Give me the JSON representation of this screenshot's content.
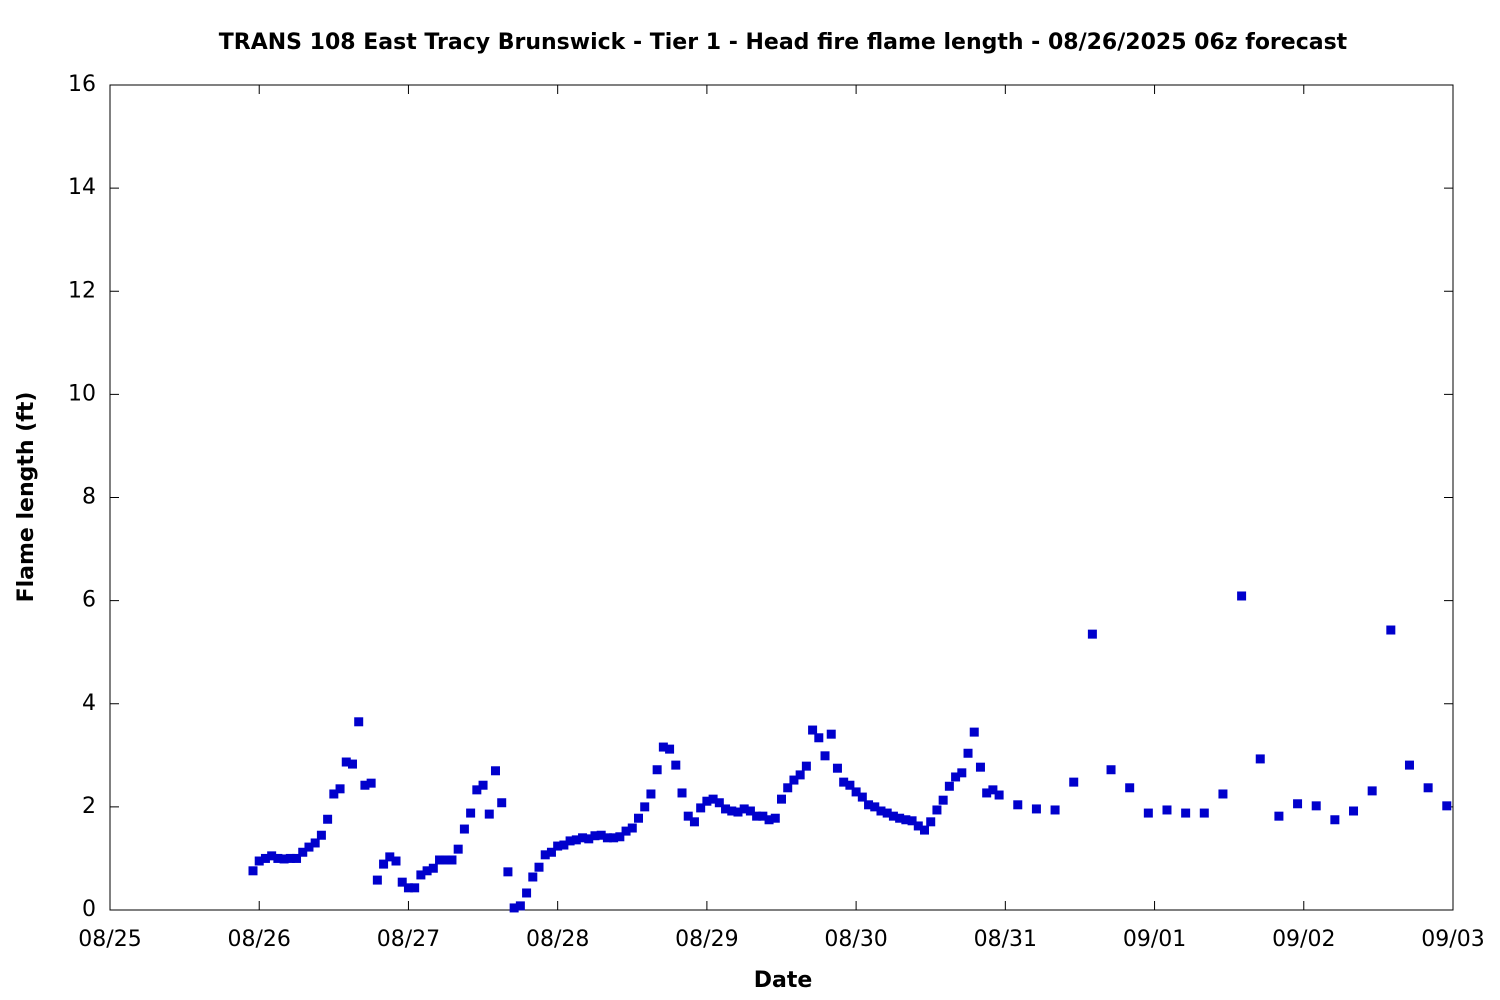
{
  "chart_data": {
    "type": "scatter",
    "title": "TRANS 108 East Tracy Brunswick - Tier 1 - Head fire flame length - 08/26/2025 06z forecast",
    "x_label": "Date",
    "y_label": "Flame length (ft)",
    "xlim": [
      0,
      216
    ],
    "xticks": [
      {
        "value": 0,
        "label": "08/25"
      },
      {
        "value": 24,
        "label": "08/26"
      },
      {
        "value": 48,
        "label": "08/27"
      },
      {
        "value": 72,
        "label": "08/28"
      },
      {
        "value": 96,
        "label": "08/29"
      },
      {
        "value": 120,
        "label": "08/30"
      },
      {
        "value": 144,
        "label": "08/31"
      },
      {
        "value": 168,
        "label": "09/01"
      },
      {
        "value": 192,
        "label": "09/02"
      },
      {
        "value": 216,
        "label": "09/03"
      }
    ],
    "ylim": [
      0,
      16
    ],
    "yticks": [
      0,
      2,
      4,
      6,
      8,
      10,
      12,
      14,
      16
    ],
    "series": [
      {
        "color": "#0000cc",
        "x": [
          23,
          24,
          25,
          26,
          27,
          28,
          29,
          30,
          31,
          32,
          33,
          34,
          35,
          36,
          37,
          38,
          39,
          40,
          41,
          42,
          43,
          44,
          45,
          46,
          47,
          48,
          49,
          50,
          51,
          52,
          53,
          54,
          55,
          56,
          57,
          58,
          59,
          60,
          61,
          62,
          63,
          64,
          65,
          66,
          67,
          68,
          69,
          70,
          71,
          72,
          73,
          74,
          75,
          76,
          77,
          78,
          79,
          80,
          81,
          82,
          83,
          84,
          85,
          86,
          87,
          88,
          89,
          90,
          91,
          92,
          93,
          94,
          95,
          96,
          97,
          98,
          99,
          100,
          101,
          102,
          103,
          104,
          105,
          106,
          107,
          108,
          109,
          110,
          111,
          112,
          113,
          114,
          115,
          116,
          117,
          118,
          119,
          120,
          121,
          122,
          123,
          124,
          125,
          126,
          127,
          128,
          129,
          130,
          131,
          132,
          133,
          134,
          135,
          136,
          137,
          138,
          139,
          140,
          141,
          142,
          143,
          146,
          149,
          152,
          155,
          158,
          161,
          164,
          167,
          170,
          173,
          176,
          179,
          182,
          185,
          188,
          191,
          194,
          197,
          200,
          203,
          206,
          209,
          212,
          215
        ],
        "values": [
          0.76,
          0.95,
          1.0,
          1.05,
          1.0,
          0.99,
          1.0,
          1.0,
          1.12,
          1.22,
          1.3,
          1.45,
          1.76,
          2.25,
          2.35,
          2.87,
          2.83,
          3.65,
          2.42,
          2.46,
          0.58,
          0.89,
          1.03,
          0.95,
          0.54,
          0.43,
          0.43,
          0.68,
          0.76,
          0.81,
          0.97,
          0.97,
          0.97,
          1.18,
          1.57,
          1.88,
          2.33,
          2.42,
          1.86,
          2.7,
          2.08,
          0.74,
          0.04,
          0.08,
          0.33,
          0.64,
          0.83,
          1.07,
          1.12,
          1.24,
          1.26,
          1.34,
          1.36,
          1.4,
          1.38,
          1.44,
          1.45,
          1.4,
          1.4,
          1.42,
          1.53,
          1.59,
          1.78,
          2.0,
          2.25,
          2.72,
          3.16,
          3.12,
          2.81,
          2.27,
          1.82,
          1.71,
          1.98,
          2.11,
          2.15,
          2.08,
          1.96,
          1.92,
          1.9,
          1.96,
          1.92,
          1.82,
          1.82,
          1.75,
          1.78,
          2.15,
          2.37,
          2.52,
          2.62,
          2.79,
          3.49,
          3.34,
          2.99,
          3.41,
          2.75,
          2.48,
          2.42,
          2.29,
          2.19,
          2.04,
          2.0,
          1.92,
          1.88,
          1.82,
          1.78,
          1.75,
          1.73,
          1.63,
          1.55,
          1.71,
          1.94,
          2.13,
          2.4,
          2.58,
          2.66,
          3.04,
          3.45,
          2.77,
          2.27,
          2.33,
          2.23,
          2.04,
          1.96,
          1.94,
          2.48,
          5.35,
          2.72,
          2.37,
          1.88,
          1.94,
          1.88,
          1.88,
          2.25,
          6.09,
          2.93,
          1.82,
          2.06,
          2.02,
          1.75,
          1.92,
          2.31,
          5.43,
          2.81,
          2.37,
          2.02
        ]
      }
    ]
  }
}
